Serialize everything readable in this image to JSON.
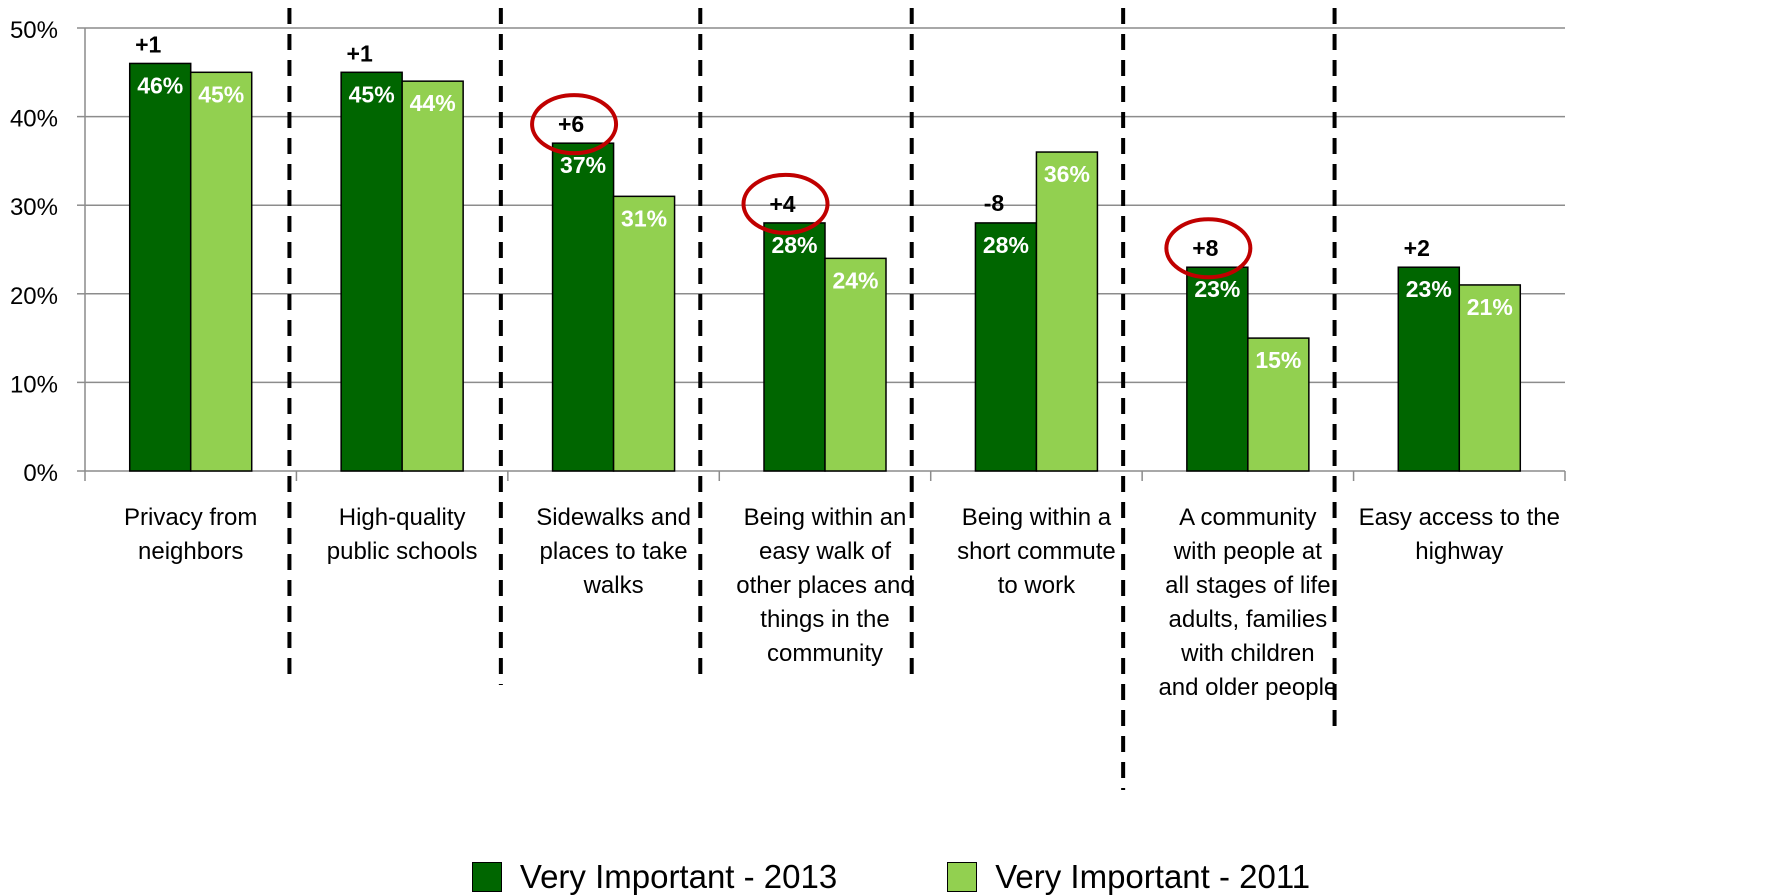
{
  "chart_data": {
    "type": "bar",
    "categories": [
      "Privacy from neighbors",
      "High-quality public schools",
      "Sidewalks and places to take walks",
      "Being within an easy walk of other places and things in the community",
      "Being within a short commute to work",
      "A community with people at all stages of life adults, families with children and older people",
      "Easy access to the highway"
    ],
    "category_lines": [
      [
        "Privacy from",
        "neighbors"
      ],
      [
        "High-quality",
        "public schools"
      ],
      [
        "Sidewalks and",
        "places to take",
        "walks"
      ],
      [
        "Being within an",
        "easy walk of",
        "other places and",
        "things in the",
        "community"
      ],
      [
        "Being within a",
        "short commute",
        "to work"
      ],
      [
        "A community",
        "with people at",
        "all stages of life",
        "adults, families",
        "with children",
        "and older people"
      ],
      [
        "Easy access to the",
        "highway"
      ]
    ],
    "series": [
      {
        "name": "Very Important - 2013",
        "values": [
          46,
          45,
          37,
          28,
          28,
          23,
          23
        ],
        "labels": [
          "46%",
          "45%",
          "37%",
          "28%",
          "28%",
          "23%",
          "23%"
        ],
        "color": "#006600"
      },
      {
        "name": "Very Important - 2011",
        "values": [
          45,
          44,
          31,
          24,
          36,
          15,
          21
        ],
        "labels": [
          "45%",
          "44%",
          "31%",
          "24%",
          "36%",
          "15%",
          "21%"
        ],
        "color": "#92D050"
      }
    ],
    "change_labels": [
      "+1",
      "+1",
      "+6",
      "+4",
      "-8",
      "+8",
      "+2"
    ],
    "highlighted_changes": [
      2,
      3,
      5
    ],
    "highlight_color": "#C00000",
    "yticks": [
      "0%",
      "10%",
      "20%",
      "30%",
      "40%",
      "50%"
    ],
    "ylim": [
      0,
      50
    ],
    "grid": true,
    "legend_position": "bottom",
    "xlabel": "",
    "ylabel": "",
    "title": ""
  }
}
